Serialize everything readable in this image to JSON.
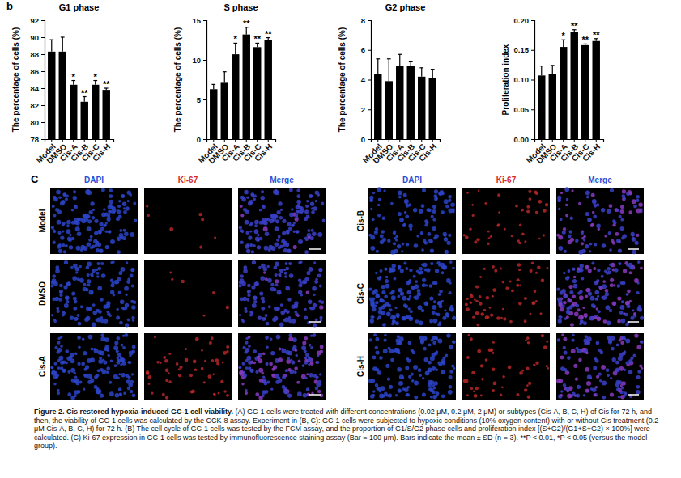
{
  "chart_panel_label": "b",
  "chart_data": [
    {
      "type": "bar",
      "title": "G1 phase",
      "y_label": "The percentage of cells (%)",
      "categories": [
        "Model",
        "DMSO",
        "Cis-A",
        "Cis-B",
        "Cis-C",
        "Cis-H"
      ],
      "values": [
        88.3,
        88.3,
        84.4,
        82.4,
        84.4,
        83.8
      ],
      "errors": [
        1.4,
        1.7,
        0.5,
        0.6,
        0.5,
        0.2
      ],
      "significance": [
        null,
        null,
        "*",
        "**",
        "*",
        "**"
      ],
      "color": "#000000",
      "ylim": [
        78,
        92
      ],
      "yticks": [
        78,
        80,
        82,
        84,
        86,
        88,
        90,
        92
      ]
    },
    {
      "type": "bar",
      "title": "S phase",
      "y_label": "The percentage of cells (%)",
      "categories": [
        "Model",
        "DMSO",
        "Cis-A",
        "Cis-B",
        "Cis-C",
        "Cis-H"
      ],
      "values": [
        6.3,
        7.1,
        10.7,
        13.2,
        11.6,
        12.5
      ],
      "errors": [
        0.6,
        1.4,
        1.4,
        0.9,
        0.5,
        0.3
      ],
      "significance": [
        null,
        null,
        "*",
        "**",
        "**",
        "**"
      ],
      "color": "#000000",
      "ylim": [
        0,
        15
      ],
      "yticks": [
        0,
        5,
        10,
        15
      ]
    },
    {
      "type": "bar",
      "title": "G2 phase",
      "y_label": "The percentage of cells (%)",
      "categories": [
        "Model",
        "DMSO",
        "Cis-A",
        "Cis-B",
        "Cis-C",
        "Cis-H"
      ],
      "values": [
        4.4,
        3.9,
        4.9,
        4.9,
        4.2,
        4.1
      ],
      "errors": [
        1.0,
        1.5,
        0.8,
        0.3,
        0.6,
        0.6
      ],
      "color": "#000000",
      "ylim": [
        0,
        8
      ],
      "yticks": [
        0,
        2,
        4,
        6,
        8
      ]
    },
    {
      "type": "bar",
      "y_label": "Proliferation index",
      "categories": [
        "Model",
        "DMSO",
        "Cis-A",
        "Cis-B",
        "Cis-C",
        "Cis-H"
      ],
      "values": [
        0.107,
        0.11,
        0.155,
        0.18,
        0.158,
        0.165
      ],
      "errors": [
        0.016,
        0.014,
        0.012,
        0.004,
        0.002,
        0.004
      ],
      "significance": [
        null,
        null,
        "*",
        "**",
        "**",
        "**"
      ],
      "color": "#000000",
      "ylim": [
        0,
        0.2
      ],
      "yticks": [
        {
          "value": 0,
          "label": "0.00"
        },
        {
          "value": 0.05,
          "label": "0.05"
        },
        {
          "value": 0.1,
          "label": "0.10"
        },
        {
          "value": 0.15,
          "label": "0.15"
        },
        {
          "value": 0.2,
          "label": "0.20"
        }
      ]
    }
  ],
  "image_panel": {
    "label": "C",
    "column_headers": [
      "DAPI",
      "Ki-67",
      "Merge"
    ],
    "colors": [
      "#2a4fd6",
      "#d42a2a",
      "#2a4fd6"
    ],
    "groups": [
      {
        "rows": [
          "Model",
          "DMSO",
          "Cis-A"
        ]
      },
      {
        "rows": [
          "Cis-B",
          "Cis-C",
          "Cis-H"
        ]
      }
    ]
  },
  "caption": {
    "title": "Figure 2. Cis restored hypoxia-induced GC-1 cell viability.",
    "text": "(A) GC-1 cells were treated with different concentrations (0.02 μM, 0.2 μM, 2 μM) or subtypes (Cis-A, B, C, H) of Cis for 72 h, and then, the viability of GC-1 cells was calculated by the CCK-8 assay. Experiment in (B, C): GC-1 cells were subjected to hypoxic conditions (10% oxygen content) with or without Cis treatment (0.2 μM Cis-A, B, C, H) for 72 h. (B) The cell cycle of GC-1 cells was tested by the FCM assay, and the proportion of G1/S/G2 phase cells and proliferation index [(S+G2)/(G1+S+G2) × 100%] were calculated. (C) Ki-67 expression in GC-1 cells was tested by immunofluorescence staining assay (Bar = 100 μm). Bars indicate the mean ± SD (n = 3). **P < 0.01, *P < 0.05 (versus the model group)."
  }
}
